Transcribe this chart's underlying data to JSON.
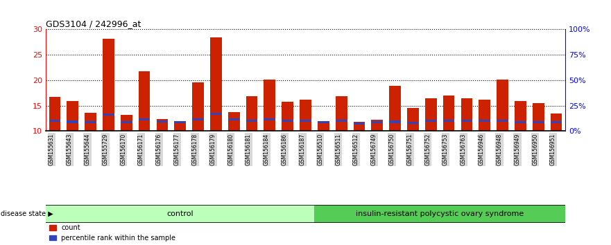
{
  "title": "GDS3104 / 242996_at",
  "samples": [
    "GSM155631",
    "GSM155643",
    "GSM155644",
    "GSM155729",
    "GSM156170",
    "GSM156171",
    "GSM156176",
    "GSM156177",
    "GSM156178",
    "GSM156179",
    "GSM156180",
    "GSM156181",
    "GSM156184",
    "GSM156186",
    "GSM156187",
    "GSM156510",
    "GSM156511",
    "GSM156512",
    "GSM156749",
    "GSM156750",
    "GSM156751",
    "GSM156752",
    "GSM156753",
    "GSM156763",
    "GSM156946",
    "GSM156948",
    "GSM156949",
    "GSM156950",
    "GSM156951"
  ],
  "counts": [
    16.7,
    15.9,
    13.6,
    28.2,
    13.2,
    21.8,
    12.3,
    12.0,
    19.6,
    28.4,
    13.7,
    16.9,
    20.1,
    15.8,
    16.2,
    11.9,
    16.8,
    11.8,
    12.2,
    18.9,
    14.5,
    16.4,
    17.0,
    16.4,
    16.2,
    20.1,
    15.9,
    15.5,
    13.5
  ],
  "percentile_bottoms": [
    11.8,
    11.6,
    11.5,
    13.0,
    11.5,
    12.1,
    11.7,
    11.5,
    12.1,
    13.2,
    12.1,
    11.8,
    12.1,
    11.8,
    11.8,
    11.5,
    11.8,
    11.3,
    11.5,
    11.6,
    11.4,
    11.8,
    11.8,
    11.8,
    11.8,
    11.8,
    11.5,
    11.5,
    11.5
  ],
  "percentile_heights": [
    0.45,
    0.45,
    0.45,
    0.45,
    0.45,
    0.45,
    0.45,
    0.45,
    0.45,
    0.45,
    0.45,
    0.45,
    0.45,
    0.45,
    0.45,
    0.45,
    0.45,
    0.45,
    0.45,
    0.45,
    0.45,
    0.45,
    0.45,
    0.45,
    0.45,
    0.45,
    0.45,
    0.45,
    0.45
  ],
  "ylim": [
    10,
    30
  ],
  "yticks": [
    10,
    15,
    20,
    25,
    30
  ],
  "right_yticklabels": [
    "0%",
    "25%",
    "50%",
    "75%",
    "100%"
  ],
  "bar_color": "#cc2200",
  "blue_color": "#3344bb",
  "control_samples": 15,
  "group1_label": "control",
  "group2_label": "insulin-resistant polycystic ovary syndrome",
  "group1_color": "#bbffbb",
  "group2_color": "#55cc55",
  "disease_state_label": "disease state",
  "legend_count_label": "count",
  "legend_percentile_label": "percentile rank within the sample",
  "bg_color": "#d8d8d8",
  "plot_bg": "#ffffff"
}
